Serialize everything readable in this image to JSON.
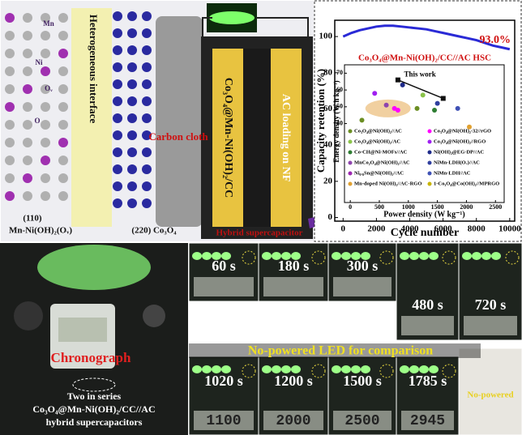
{
  "illustration": {
    "interface_label": "Heterogeneous interface",
    "cloth_label": "Carbon cloth",
    "facet_left": "(110)",
    "phase_left": "Mn-Ni(OH)₂(Oᵥ)",
    "phase_right": "(220) Co₃O₄",
    "atom_labels": [
      "Mn",
      "Ni",
      "O",
      "Oᵥ"
    ],
    "electrode_left": "Co₃O₄@Mn-Ni(OH)₂/CC",
    "electrode_right": "AC loading on NF",
    "device_label": "Hybrid supercapacitor"
  },
  "retention_chart": {
    "type": "line",
    "x_label": "Cycle number",
    "y_label": "Capacity retention (%)",
    "annotation": "93.0%",
    "series_label": "Co₃O₄@Mn-Ni(OH)₂/CC//AC HSC",
    "color": "#2a2ad6",
    "x": [
      0,
      500,
      1000,
      1500,
      2000,
      2500,
      3000,
      3500,
      4000,
      4500,
      5000,
      5500,
      6000,
      6500,
      7000,
      7500,
      8000,
      8500,
      9000,
      9500,
      10000
    ],
    "values": [
      100,
      102,
      103.5,
      104.5,
      105.5,
      106,
      106,
      105.5,
      105,
      104.5,
      104,
      103,
      102,
      101,
      100,
      99,
      98,
      96.5,
      95,
      94,
      93
    ],
    "xlim": [
      -500,
      10300
    ],
    "ylim": [
      -2,
      109
    ],
    "xticks": [
      0,
      2000,
      4000,
      6000,
      8000,
      10000
    ],
    "yticks": [
      0,
      20,
      40,
      60,
      80,
      100
    ]
  },
  "inset_chart": {
    "type": "scatter",
    "x_label": "Power density (W kg⁻¹)",
    "y_label": "Energy density (W h kg⁻¹)",
    "annotation": "This work",
    "xlim": [
      -100,
      2650
    ],
    "ylim": [
      -7,
      75
    ],
    "xticks": [
      0,
      500,
      1000,
      1500,
      2000,
      2500
    ],
    "yticks": [
      40,
      50,
      60,
      70
    ],
    "points": {
      "x": [
        200,
        420,
        620,
        760,
        820,
        900,
        1150,
        1250,
        1450,
        1500,
        1850,
        2050
      ],
      "y": [
        42,
        58,
        51,
        49,
        48,
        63,
        49,
        57,
        48,
        52,
        49,
        38
      ],
      "colors": [
        "#6b8e23",
        "#a020f0",
        "#8e44ad",
        "#ff00ff",
        "#ff00ff",
        "#1e2a8a",
        "#6b8e23",
        "#8bc34a",
        "#2e7d32",
        "#303f9f",
        "#3f51b5",
        "#e0a030"
      ]
    },
    "this_work": {
      "x": [
        820,
        1600
      ],
      "y": [
        66,
        55
      ],
      "color": "#111111"
    },
    "legend": [
      {
        "name": "Co₃O₄@Ni(OH)₂//AC",
        "color": "#6b8e23"
      },
      {
        "name": "Co₃O₄@Ni(OH)₂-32//rGO",
        "color": "#ff00ff"
      },
      {
        "name": "Co₃O₄@Ni(OH)₂/AC",
        "color": "#8bc34a"
      },
      {
        "name": "Co₃O₄@Ni(OH)₂//RGO",
        "color": "#a020f0"
      },
      {
        "name": "Co-CH@Ni-MOFs//AC",
        "color": "#2e7d32"
      },
      {
        "name": "Ni(OH)₂@EG-DP//AC",
        "color": "#1e2a8a"
      },
      {
        "name": "MnCo₂O₄@Ni(OH)₂//AC",
        "color": "#8e44ad"
      },
      {
        "name": "NiMn-LDH(Oᵥ)//AC",
        "color": "#303f9f"
      },
      {
        "name": "Ni₀.₈Sn@Ni(OH)₂//AC",
        "color": "#9c27b0"
      },
      {
        "name": "NiMn-LDH//AC",
        "color": "#3f51b5"
      },
      {
        "name": "Mn-doped Ni(OH)₂//AC-RGO",
        "color": "#e0a030"
      },
      {
        "name": "1-Co₃O₄@Co(OH)₂//MPRGO",
        "color": "#c8b400"
      }
    ]
  },
  "photos": {
    "chronograph_label": "Chronograph",
    "caption": [
      "Two in series",
      "Co₃O₄@Mn-Ni(OH)₂/CC//AC",
      "hybrid supercapacitors"
    ],
    "comparison_label": "No-powered LED for comparison",
    "no_powered_label": "No-powered",
    "frames": [
      {
        "time": "60 s"
      },
      {
        "time": "180 s"
      },
      {
        "time": "300 s"
      },
      {
        "time": "480 s"
      },
      {
        "time": "720 s"
      },
      {
        "time": "1020 s",
        "reading": "1100"
      },
      {
        "time": "1200 s",
        "reading": "2000"
      },
      {
        "time": "1500 s",
        "reading": "2500"
      },
      {
        "time": "1785 s",
        "reading": "2945"
      }
    ]
  }
}
